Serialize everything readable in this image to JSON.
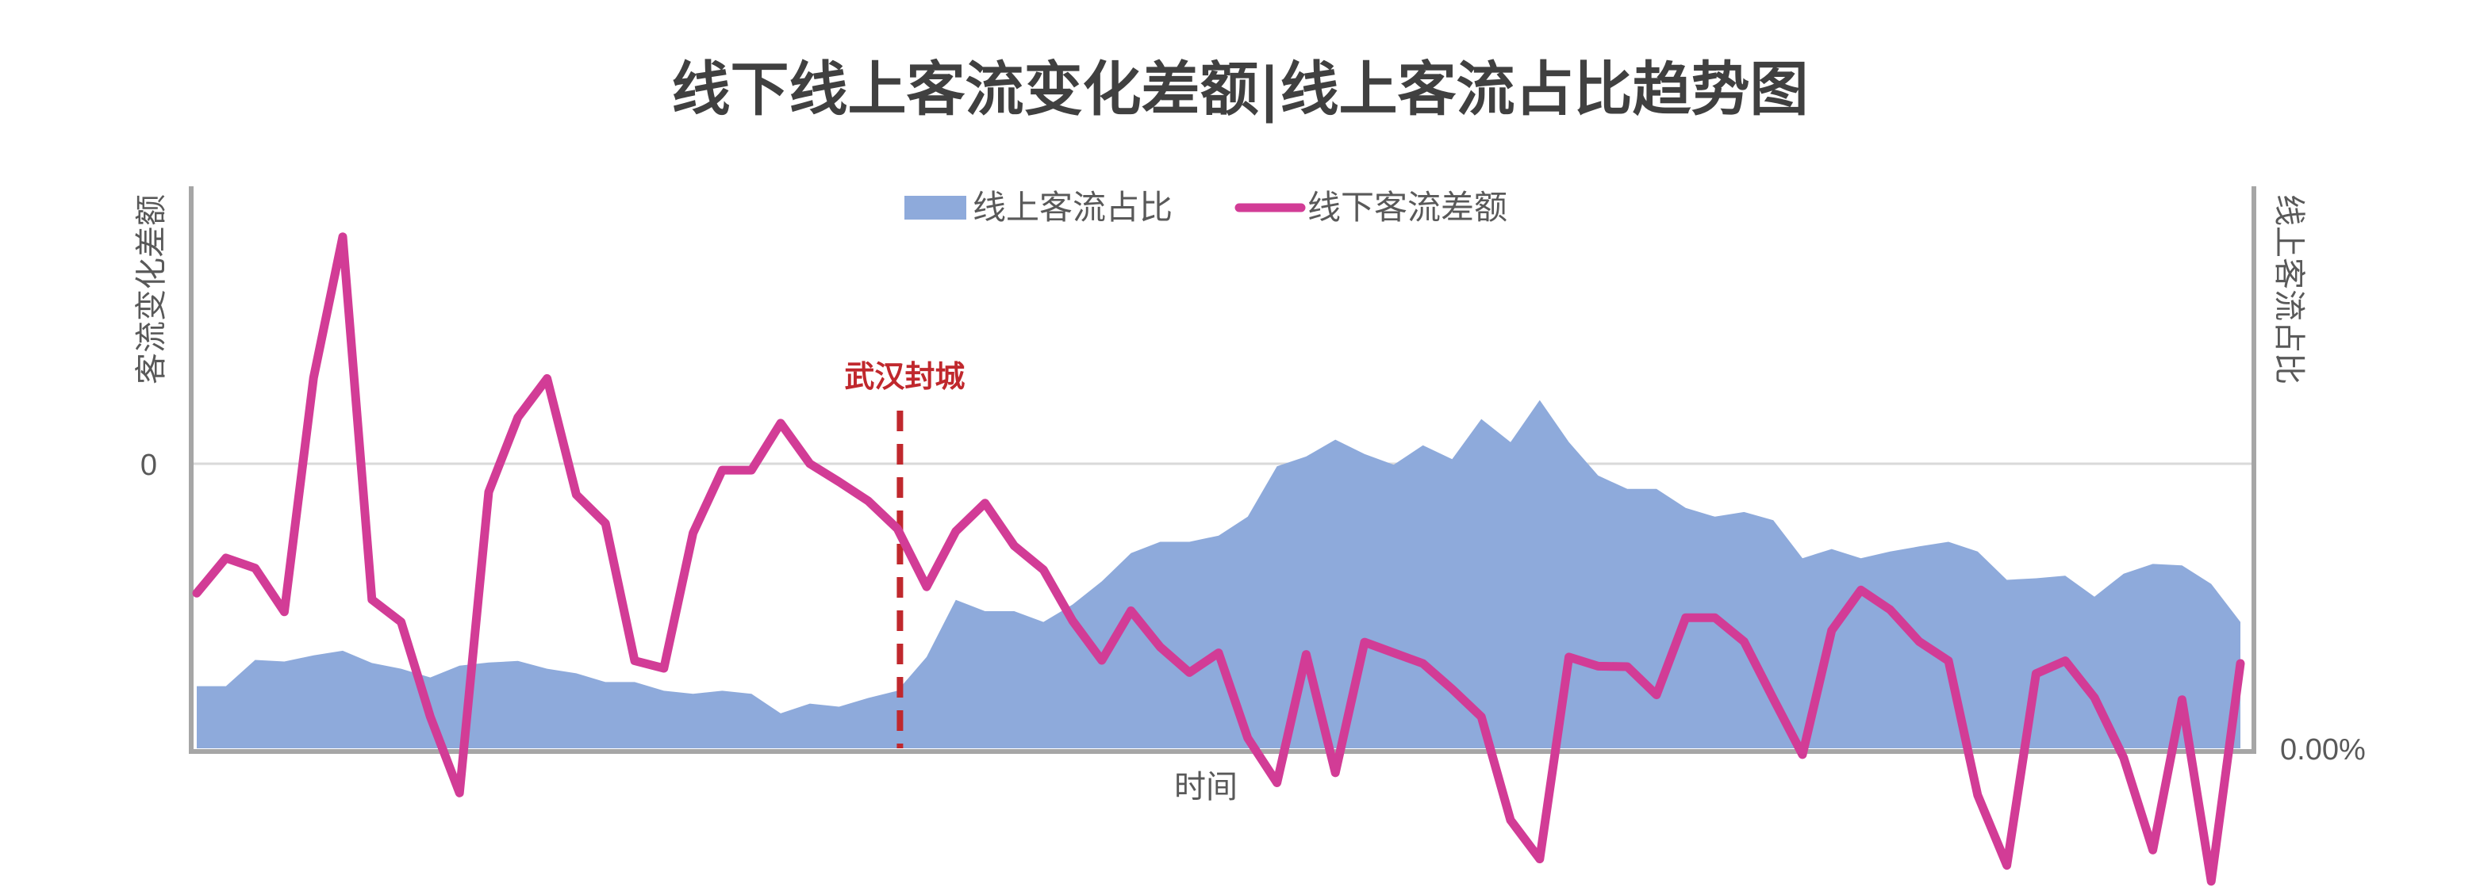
{
  "chart_data": {
    "type": "area+line",
    "title": "线下线上客流变化差额|线上客流占比趋势图",
    "xlabel": "时间",
    "ylabel_left": "客流变化差额",
    "ylabel_right": "线上客流占比",
    "left_axis": {
      "tick_labels": [
        {
          "value": 0,
          "label": "0"
        }
      ],
      "ylim": [
        -100,
        100
      ]
    },
    "right_axis": {
      "tick_labels": [
        {
          "value": 0,
          "label": "0.00%"
        }
      ],
      "ylim": [
        0,
        100
      ]
    },
    "grid": "horizontal line at 0",
    "legend": {
      "placement": "top-center"
    },
    "annotation": {
      "label": "武汉封城",
      "x_index": 23,
      "color": "#c0282d"
    },
    "colors": {
      "area": "#8eaadb",
      "line": "#d23c96",
      "annotation": "#c0282d",
      "axis": "#a6a6a6",
      "gridline": "#d9d9d9"
    },
    "series": [
      {
        "name": "线上客流占比",
        "type": "area",
        "axis": "right",
        "values": [
          12.1,
          12.1,
          17.2,
          16.9,
          18.1,
          19.0,
          16.6,
          15.5,
          13.8,
          16.1,
          16.7,
          17.0,
          15.5,
          14.6,
          12.9,
          12.9,
          11.2,
          10.6,
          11.2,
          10.6,
          6.8,
          8.7,
          8.1,
          9.8,
          11.2,
          17.8,
          28.9,
          26.7,
          26.7,
          24.6,
          28.0,
          32.5,
          38.0,
          40.2,
          40.2,
          41.4,
          45.1,
          54.9,
          56.8,
          60.1,
          57.3,
          55.2,
          59.0,
          56.3,
          64.1,
          59.6,
          67.8,
          59.6,
          53.1,
          50.5,
          50.5,
          46.8,
          45.1,
          46.0,
          44.4,
          37.0,
          38.8,
          37.0,
          38.3,
          39.3,
          40.2,
          38.3,
          32.8,
          33.1,
          33.6,
          29.5,
          34.0,
          35.9,
          35.6,
          32.0,
          24.6
        ]
      },
      {
        "name": "线下客流差额",
        "type": "line",
        "axis": "left",
        "values": [
          -24.3,
          -17.7,
          -19.6,
          -27.8,
          16.1,
          42.6,
          -25.5,
          -29.7,
          -47.5,
          -61.8,
          -5.3,
          8.7,
          16.0,
          -5.8,
          -11.2,
          -37.0,
          -38.4,
          -13.0,
          -1.2,
          -1.2,
          7.6,
          0,
          -3.4,
          -7.0,
          -12.2,
          -23.1,
          -12.7,
          -7.4,
          -15.4,
          -19.9,
          -29.5,
          -36.9,
          -27.6,
          -34.4,
          -39.2,
          -35.5,
          -51.5,
          -59.9,
          -35.8,
          -58.0,
          -33.5,
          -35.5,
          -37.5,
          -42.3,
          -47.5,
          -66.9,
          -74.2,
          -36.3,
          -38.0,
          -38.1,
          -43.4,
          -28.9,
          -28.9,
          -33.4,
          -44.1,
          -54.6,
          -31.3,
          -23.7,
          -27.4,
          -33.4,
          -37.0,
          -62.2,
          -75.4,
          -39.4,
          -37.0,
          -43.9,
          -55.2,
          -72.5,
          -44.3,
          -78.4,
          -37.5
        ]
      }
    ]
  }
}
